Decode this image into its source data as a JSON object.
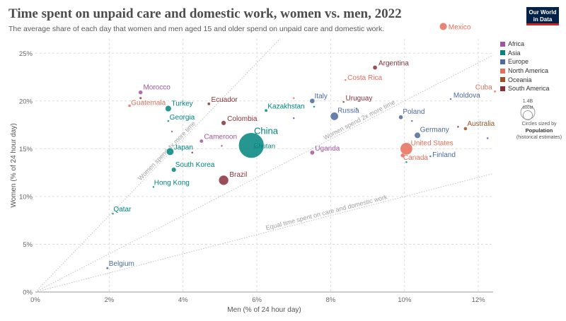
{
  "title": "Time spent on unpaid care and domestic work, women vs. men, 2022",
  "subtitle": "The average share of each day that women and men aged 15 and older spend on unpaid care and domestic work.",
  "logo": {
    "line1": "Our World",
    "line2": "in Data",
    "bg": "#002147",
    "accent": "#ce261e"
  },
  "size_legend": {
    "big_label": "1.4B",
    "small_label": "600M",
    "line1": "Circles sized by",
    "line2": "Population",
    "line3": "(historical estimates)"
  },
  "chart_data": {
    "type": "scatter",
    "title": "Time spent on unpaid care and domestic work, women vs. men, 2022",
    "xlabel": "Men (% of 24 hour day)",
    "ylabel": "Women (% of 24 hour day)",
    "xlim": [
      0,
      12.4
    ],
    "ylim": [
      0,
      26.5
    ],
    "x_ticks": [
      0,
      2,
      4,
      6,
      8,
      10,
      12
    ],
    "y_ticks": [
      0,
      5,
      10,
      15,
      20,
      25
    ],
    "x_tick_labels": [
      "0%",
      "2%",
      "4%",
      "6%",
      "8%",
      "10%",
      "12%"
    ],
    "y_tick_labels": [
      "0%",
      "5%",
      "10%",
      "15%",
      "20%",
      "25%"
    ],
    "grid": true,
    "legend_position": "right",
    "reference_lines": [
      {
        "slope": 4,
        "label": "Women spend 4x more time"
      },
      {
        "slope": 2,
        "label": "Women spend 2x more time"
      },
      {
        "slope": 1,
        "label": "Equal time spent on care and domestic work"
      }
    ],
    "regions": [
      {
        "name": "Africa",
        "color": "#a2559c"
      },
      {
        "name": "Asia",
        "color": "#00847e"
      },
      {
        "name": "Europe",
        "color": "#4c6a9c"
      },
      {
        "name": "North America",
        "color": "#e56e5a"
      },
      {
        "name": "Oceania",
        "color": "#9a5129"
      },
      {
        "name": "South America",
        "color": "#883039"
      }
    ],
    "points": [
      {
        "label": "Mexico",
        "x": 11.05,
        "y": 27.8,
        "region": "North America",
        "pop": 127
      },
      {
        "label": "Argentina",
        "x": 9.2,
        "y": 23.5,
        "region": "South America",
        "pop": 46
      },
      {
        "label": "Costa Rica",
        "x": 8.4,
        "y": 22.2,
        "region": "North America",
        "pop": 5
      },
      {
        "label": "Cuba",
        "x": 12.45,
        "y": 21.0,
        "region": "North America",
        "pop": 11
      },
      {
        "label": "Morocco",
        "x": 2.85,
        "y": 20.9,
        "region": "Africa",
        "pop": 37
      },
      {
        "label": "Guatemala",
        "x": 2.55,
        "y": 19.5,
        "region": "North America",
        "pop": 17
      },
      {
        "label": "Turkey",
        "x": 3.6,
        "y": 19.2,
        "region": "Asia",
        "pop": 85
      },
      {
        "label": "Ecuador",
        "x": 4.7,
        "y": 19.7,
        "region": "South America",
        "pop": 18
      },
      {
        "label": "Kazakhstan",
        "x": 6.25,
        "y": 19.0,
        "region": "Asia",
        "pop": 19
      },
      {
        "label": "Italy",
        "x": 7.5,
        "y": 20.0,
        "region": "Europe",
        "pop": 59
      },
      {
        "label": "Uruguay",
        "x": 8.35,
        "y": 19.9,
        "region": "South America",
        "pop": 3.4
      },
      {
        "label": "Moldova",
        "x": 11.25,
        "y": 20.2,
        "region": "Europe",
        "pop": 3
      },
      {
        "label": "Georgia",
        "x": 3.6,
        "y": 17.9,
        "region": "Asia",
        "pop": 3.7
      },
      {
        "label": "Colombia",
        "x": 5.1,
        "y": 17.7,
        "region": "South America",
        "pop": 52
      },
      {
        "label": "Russia",
        "x": 8.1,
        "y": 18.4,
        "region": "Europe",
        "pop": 144
      },
      {
        "label": "Poland",
        "x": 9.9,
        "y": 18.3,
        "region": "Europe",
        "pop": 38
      },
      {
        "label": "Australia",
        "x": 11.65,
        "y": 17.1,
        "region": "Oceania",
        "pop": 26
      },
      {
        "label": "Germany",
        "x": 10.35,
        "y": 16.4,
        "region": "Europe",
        "pop": 83
      },
      {
        "label": "Cameroon",
        "x": 4.5,
        "y": 15.8,
        "region": "Africa",
        "pop": 28
      },
      {
        "label": "China",
        "x": 5.85,
        "y": 15.35,
        "region": "Asia",
        "pop": 1412
      },
      {
        "label": "Bhutan",
        "x": 6.0,
        "y": 15.35,
        "region": "Asia",
        "pop": 0.8
      },
      {
        "label": "Japan",
        "x": 3.65,
        "y": 14.7,
        "region": "Asia",
        "pop": 124
      },
      {
        "label": "Uganda",
        "x": 7.5,
        "y": 14.6,
        "region": "Africa",
        "pop": 47
      },
      {
        "label": "United States",
        "x": 10.05,
        "y": 15.0,
        "region": "North America",
        "pop": 333
      },
      {
        "label": "Canada",
        "x": 9.95,
        "y": 14.3,
        "region": "North America",
        "pop": 38
      },
      {
        "label": "Finland",
        "x": 10.7,
        "y": 14.2,
        "region": "Europe",
        "pop": 5.5
      },
      {
        "label": "South Korea",
        "x": 3.75,
        "y": 12.8,
        "region": "Asia",
        "pop": 52
      },
      {
        "label": "Brazil",
        "x": 5.1,
        "y": 11.7,
        "region": "South America",
        "pop": 215
      },
      {
        "label": "Hong Kong",
        "x": 3.2,
        "y": 11.0,
        "region": "Asia",
        "pop": 7.3
      },
      {
        "label": "Qatar",
        "x": 2.1,
        "y": 8.2,
        "region": "Asia",
        "pop": 2.7
      },
      {
        "label": "Belgium",
        "x": 1.95,
        "y": 2.5,
        "region": "Europe",
        "pop": 11.6
      },
      {
        "x": 2.85,
        "y": 20.3,
        "region": "South America",
        "pop": 12
      },
      {
        "x": 7.0,
        "y": 20.3,
        "region": "North America",
        "pop": 1
      },
      {
        "x": 7.55,
        "y": 19.4,
        "region": "Asia",
        "pop": 1.5
      },
      {
        "x": 8.7,
        "y": 19.2,
        "region": "Europe",
        "pop": 2
      },
      {
        "x": 7.0,
        "y": 18.2,
        "region": "Europe",
        "pop": 4
      },
      {
        "x": 10.2,
        "y": 17.9,
        "region": "Europe",
        "pop": 1.8
      },
      {
        "x": 11.45,
        "y": 17.3,
        "region": "South America",
        "pop": 2
      },
      {
        "x": 3.7,
        "y": 16.8,
        "region": "Africa",
        "pop": 1
      },
      {
        "x": 5.05,
        "y": 15.3,
        "region": "Africa",
        "pop": 2
      },
      {
        "x": 4.25,
        "y": 14.6,
        "region": "South America",
        "pop": 2
      },
      {
        "x": 12.25,
        "y": 16.1,
        "region": "Europe",
        "pop": 9
      },
      {
        "x": 10.05,
        "y": 13.6,
        "region": "Asia",
        "pop": 1
      }
    ]
  }
}
